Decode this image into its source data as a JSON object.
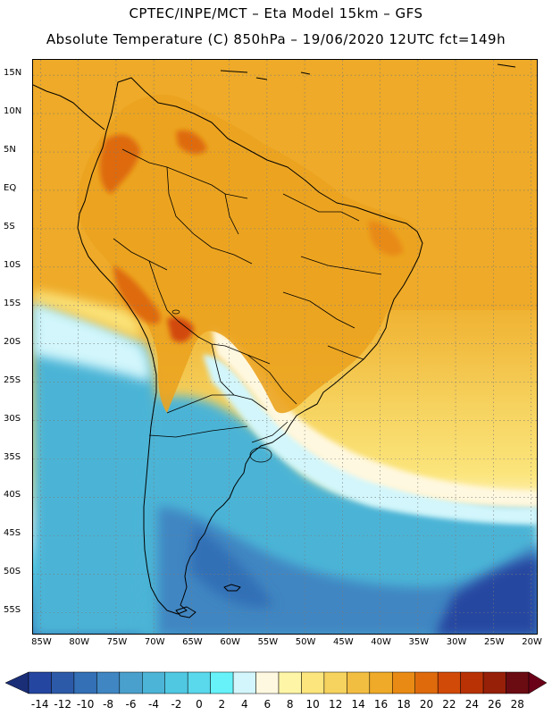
{
  "header": {
    "line1": "CPTEC/INPE/MCT –  Eta Model 15km – GFS",
    "line2": "Absolute Temperature (C) 850hPa – 19/06/2020 12UTC fct=149h"
  },
  "map": {
    "lon_range": [
      -86,
      -19
    ],
    "lat_range": [
      -58,
      17
    ],
    "lat_ticks": [
      {
        "value": 15,
        "label": "15N"
      },
      {
        "value": 10,
        "label": "10N"
      },
      {
        "value": 5,
        "label": "5N"
      },
      {
        "value": 0,
        "label": "EQ"
      },
      {
        "value": -5,
        "label": "5S"
      },
      {
        "value": -10,
        "label": "10S"
      },
      {
        "value": -15,
        "label": "15S"
      },
      {
        "value": -20,
        "label": "20S"
      },
      {
        "value": -25,
        "label": "25S"
      },
      {
        "value": -30,
        "label": "30S"
      },
      {
        "value": -35,
        "label": "35S"
      },
      {
        "value": -40,
        "label": "40S"
      },
      {
        "value": -45,
        "label": "45S"
      },
      {
        "value": -50,
        "label": "50S"
      },
      {
        "value": -55,
        "label": "55S"
      }
    ],
    "lon_ticks": [
      {
        "value": -85,
        "label": "85W"
      },
      {
        "value": -80,
        "label": "80W"
      },
      {
        "value": -75,
        "label": "75W"
      },
      {
        "value": -70,
        "label": "70W"
      },
      {
        "value": -65,
        "label": "65W"
      },
      {
        "value": -60,
        "label": "60W"
      },
      {
        "value": -55,
        "label": "55W"
      },
      {
        "value": -50,
        "label": "50W"
      },
      {
        "value": -45,
        "label": "45W"
      },
      {
        "value": -40,
        "label": "40W"
      },
      {
        "value": -35,
        "label": "35W"
      },
      {
        "value": -30,
        "label": "30W"
      },
      {
        "value": -25,
        "label": "25W"
      },
      {
        "value": -20,
        "label": "20W"
      }
    ],
    "land_color": "#e8a020",
    "sea_warm_color": "#eeaa28",
    "coastline_color": "#000000"
  },
  "colorbar": {
    "colors": [
      "#2546a0",
      "#2d5aa8",
      "#3370b6",
      "#3f86c2",
      "#4aa0cc",
      "#4cb4d6",
      "#50c8e2",
      "#5ad8ec",
      "#66f2f8",
      "#d2f6fb",
      "#fff8e0",
      "#fef6a6",
      "#fbe57c",
      "#f6d25e",
      "#f2be42",
      "#eeaa28",
      "#e88a14",
      "#de6a0c",
      "#d24a08",
      "#b83206",
      "#962008",
      "#6a0c12"
    ],
    "under_color": "#1a2e78",
    "over_color": "#6a0018",
    "labels": [
      "-14",
      "-12",
      "-10",
      "-8",
      "-6",
      "-4",
      "-2",
      "0",
      "2",
      "4",
      "6",
      "8",
      "10",
      "12",
      "14",
      "16",
      "18",
      "20",
      "22",
      "24",
      "26",
      "28"
    ]
  }
}
